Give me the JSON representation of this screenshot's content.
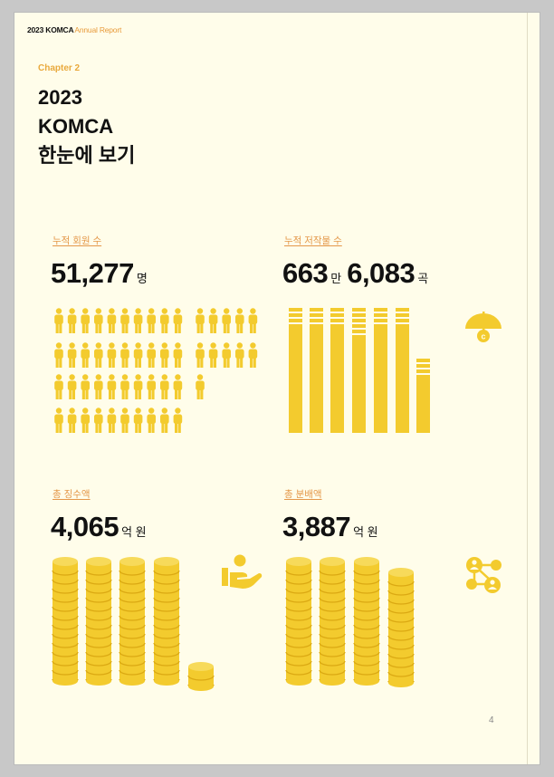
{
  "header": {
    "brand": "2023 KOMCA",
    "subtitle": "Annual Report"
  },
  "chapter": "Chapter 2",
  "title": {
    "line1": "2023",
    "line2": "KOMCA",
    "line3": "한눈에 보기"
  },
  "stats": {
    "members": {
      "label": "누적 회원 수",
      "value": "51,277",
      "unit": "명"
    },
    "works": {
      "label": "누적 저작물 수",
      "value1": "663",
      "unit1": "만",
      "value2": "6,083",
      "unit2": "곡"
    },
    "collection": {
      "label": "총 징수액",
      "value": "4,065",
      "unit": "억 원"
    },
    "distribution": {
      "label": "총 분배액",
      "value": "3,887",
      "unit": "억 원"
    }
  },
  "colors": {
    "accent": "#f3cb2e",
    "accent_dark": "#dba913",
    "label": "#e4984a",
    "page": "#fffdea"
  },
  "icons": [
    "umbrella-copyright-icon",
    "hand-coin-icon",
    "network-people-icon"
  ],
  "page_number": "4"
}
